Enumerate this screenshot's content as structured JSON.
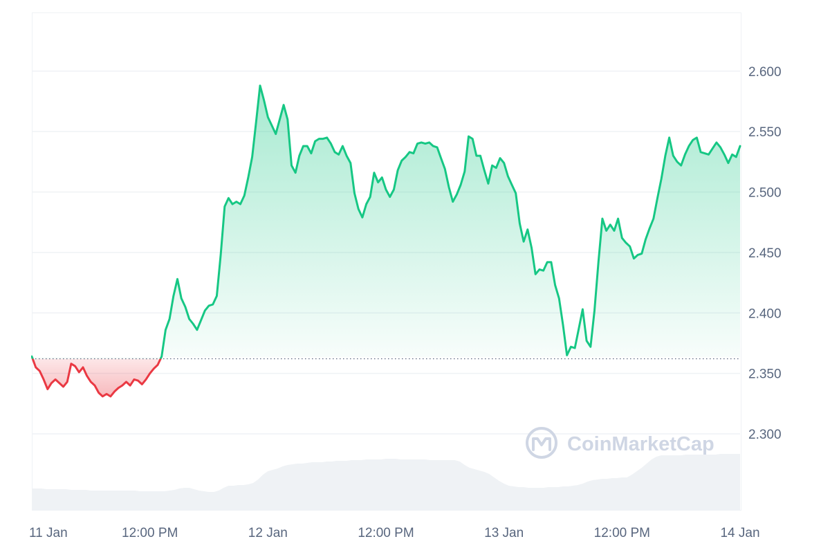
{
  "chart_data": {
    "type": "area",
    "baseline": 2.3635,
    "ylim": [
      2.2365,
      2.6485
    ],
    "y_ticks": [
      "2.300",
      "2.350",
      "2.400",
      "2.450",
      "2.500",
      "2.550",
      "2.600"
    ],
    "x_ticks": [
      "11 Jan",
      "12:00 PM",
      "12 Jan",
      "12:00 PM",
      "13 Jan",
      "12:00 PM",
      "14 Jan"
    ],
    "colors": {
      "up_line": "#16c784",
      "down_line": "#ea3943",
      "up_fill": "#16c784",
      "down_fill": "#ea3943",
      "grid": "#eff2f5",
      "volume": "#eff2f5",
      "baseline": "#58667e"
    },
    "series": [
      {
        "values": [
          [
            0.0,
            2.364
          ],
          [
            0.4,
            2.355
          ],
          [
            0.8,
            2.352
          ],
          [
            1.2,
            2.345
          ],
          [
            1.6,
            2.337
          ],
          [
            2.0,
            2.342
          ],
          [
            2.4,
            2.345
          ],
          [
            2.8,
            2.342
          ],
          [
            3.2,
            2.339
          ],
          [
            3.6,
            2.343
          ],
          [
            4.0,
            2.358
          ],
          [
            4.4,
            2.356
          ],
          [
            4.8,
            2.351
          ],
          [
            5.2,
            2.355
          ],
          [
            5.6,
            2.348
          ],
          [
            6.0,
            2.343
          ],
          [
            6.4,
            2.34
          ],
          [
            6.8,
            2.334
          ],
          [
            7.2,
            2.331
          ],
          [
            7.6,
            2.333
          ],
          [
            8.0,
            2.331
          ],
          [
            8.4,
            2.335
          ],
          [
            8.8,
            2.338
          ],
          [
            9.2,
            2.34
          ],
          [
            9.6,
            2.343
          ],
          [
            10.0,
            2.34
          ],
          [
            10.4,
            2.345
          ],
          [
            10.8,
            2.344
          ],
          [
            11.2,
            2.341
          ],
          [
            11.6,
            2.345
          ],
          [
            12.0,
            2.35
          ],
          [
            12.4,
            2.354
          ],
          [
            12.8,
            2.357
          ],
          [
            13.2,
            2.364
          ],
          [
            13.6,
            2.386
          ],
          [
            14.0,
            2.395
          ],
          [
            14.4,
            2.414
          ],
          [
            14.8,
            2.428
          ],
          [
            15.2,
            2.412
          ],
          [
            15.6,
            2.405
          ],
          [
            16.0,
            2.395
          ],
          [
            16.4,
            2.391
          ],
          [
            16.8,
            2.386
          ],
          [
            17.2,
            2.394
          ],
          [
            17.6,
            2.402
          ],
          [
            18.0,
            2.406
          ],
          [
            18.4,
            2.407
          ],
          [
            18.8,
            2.414
          ],
          [
            19.2,
            2.448
          ],
          [
            19.6,
            2.488
          ],
          [
            20.0,
            2.495
          ],
          [
            20.4,
            2.49
          ],
          [
            20.8,
            2.492
          ],
          [
            21.2,
            2.49
          ],
          [
            21.6,
            2.497
          ],
          [
            22.0,
            2.512
          ],
          [
            22.4,
            2.529
          ],
          [
            22.8,
            2.558
          ],
          [
            23.2,
            2.588
          ],
          [
            23.6,
            2.576
          ],
          [
            24.0,
            2.562
          ],
          [
            24.4,
            2.555
          ],
          [
            24.8,
            2.548
          ],
          [
            25.2,
            2.56
          ],
          [
            25.6,
            2.572
          ],
          [
            26.0,
            2.56
          ],
          [
            26.4,
            2.522
          ],
          [
            26.8,
            2.516
          ],
          [
            27.2,
            2.53
          ],
          [
            27.6,
            2.538
          ],
          [
            28.0,
            2.538
          ],
          [
            28.4,
            2.532
          ],
          [
            28.8,
            2.542
          ],
          [
            29.2,
            2.544
          ],
          [
            29.6,
            2.544
          ],
          [
            30.0,
            2.545
          ],
          [
            30.4,
            2.54
          ],
          [
            30.8,
            2.533
          ],
          [
            31.2,
            2.531
          ],
          [
            31.6,
            2.538
          ],
          [
            32.0,
            2.53
          ],
          [
            32.4,
            2.524
          ],
          [
            32.8,
            2.499
          ],
          [
            33.2,
            2.486
          ],
          [
            33.6,
            2.479
          ],
          [
            34.0,
            2.49
          ],
          [
            34.4,
            2.496
          ],
          [
            34.8,
            2.516
          ],
          [
            35.2,
            2.508
          ],
          [
            35.6,
            2.512
          ],
          [
            36.0,
            2.502
          ],
          [
            36.4,
            2.496
          ],
          [
            36.8,
            2.502
          ],
          [
            37.2,
            2.518
          ],
          [
            37.6,
            2.526
          ],
          [
            38.0,
            2.529
          ],
          [
            38.4,
            2.533
          ],
          [
            38.8,
            2.532
          ],
          [
            39.2,
            2.54
          ],
          [
            39.6,
            2.541
          ],
          [
            40.0,
            2.54
          ],
          [
            40.4,
            2.541
          ],
          [
            40.8,
            2.538
          ],
          [
            41.2,
            2.537
          ],
          [
            41.6,
            2.528
          ],
          [
            42.0,
            2.519
          ],
          [
            42.4,
            2.504
          ],
          [
            42.8,
            2.492
          ],
          [
            43.2,
            2.498
          ],
          [
            43.6,
            2.506
          ],
          [
            44.0,
            2.517
          ],
          [
            44.4,
            2.546
          ],
          [
            44.8,
            2.544
          ],
          [
            45.2,
            2.53
          ],
          [
            45.6,
            2.53
          ],
          [
            46.0,
            2.518
          ],
          [
            46.4,
            2.507
          ],
          [
            46.8,
            2.522
          ],
          [
            47.2,
            2.52
          ],
          [
            47.6,
            2.528
          ],
          [
            48.0,
            2.524
          ],
          [
            48.4,
            2.513
          ],
          [
            48.8,
            2.506
          ],
          [
            49.2,
            2.499
          ],
          [
            49.6,
            2.474
          ],
          [
            50.0,
            2.459
          ],
          [
            50.4,
            2.469
          ],
          [
            50.8,
            2.454
          ],
          [
            51.2,
            2.432
          ],
          [
            51.6,
            2.436
          ],
          [
            52.0,
            2.435
          ],
          [
            52.4,
            2.442
          ],
          [
            52.8,
            2.442
          ],
          [
            53.2,
            2.423
          ],
          [
            53.6,
            2.412
          ],
          [
            54.0,
            2.39
          ],
          [
            54.4,
            2.365
          ],
          [
            54.8,
            2.372
          ],
          [
            55.2,
            2.371
          ],
          [
            55.6,
            2.387
          ],
          [
            56.0,
            2.403
          ],
          [
            56.4,
            2.377
          ],
          [
            56.8,
            2.372
          ],
          [
            57.2,
            2.402
          ],
          [
            57.6,
            2.442
          ],
          [
            58.0,
            2.478
          ],
          [
            58.4,
            2.468
          ],
          [
            58.8,
            2.473
          ],
          [
            59.2,
            2.468
          ],
          [
            59.6,
            2.478
          ],
          [
            60.0,
            2.462
          ],
          [
            60.4,
            2.458
          ],
          [
            60.8,
            2.455
          ],
          [
            61.2,
            2.445
          ],
          [
            61.6,
            2.448
          ],
          [
            62.0,
            2.449
          ],
          [
            62.4,
            2.461
          ],
          [
            62.8,
            2.47
          ],
          [
            63.2,
            2.478
          ],
          [
            63.6,
            2.495
          ],
          [
            64.0,
            2.511
          ],
          [
            64.4,
            2.53
          ],
          [
            64.8,
            2.545
          ],
          [
            65.2,
            2.53
          ],
          [
            65.6,
            2.525
          ],
          [
            66.0,
            2.522
          ],
          [
            66.4,
            2.531
          ],
          [
            66.8,
            2.538
          ],
          [
            67.2,
            2.543
          ],
          [
            67.6,
            2.545
          ],
          [
            68.0,
            2.533
          ],
          [
            68.4,
            2.532
          ],
          [
            68.8,
            2.531
          ],
          [
            69.2,
            2.536
          ],
          [
            69.6,
            2.541
          ],
          [
            70.0,
            2.537
          ],
          [
            70.4,
            2.531
          ],
          [
            70.8,
            2.524
          ],
          [
            71.2,
            2.531
          ],
          [
            71.6,
            2.529
          ],
          [
            72.0,
            2.538
          ]
        ]
      }
    ],
    "volume": [
      0.32,
      0.32,
      0.32,
      0.31,
      0.31,
      0.31,
      0.31,
      0.31,
      0.3,
      0.3,
      0.3,
      0.3,
      0.29,
      0.29,
      0.29,
      0.29,
      0.29,
      0.29,
      0.29,
      0.29,
      0.29,
      0.29,
      0.28,
      0.28,
      0.28,
      0.28,
      0.28,
      0.28,
      0.29,
      0.3,
      0.32,
      0.33,
      0.33,
      0.31,
      0.29,
      0.28,
      0.27,
      0.27,
      0.29,
      0.33,
      0.36,
      0.36,
      0.37,
      0.37,
      0.38,
      0.4,
      0.45,
      0.52,
      0.57,
      0.59,
      0.61,
      0.64,
      0.66,
      0.67,
      0.68,
      0.68,
      0.69,
      0.7,
      0.7,
      0.7,
      0.71,
      0.71,
      0.72,
      0.72,
      0.72,
      0.73,
      0.73,
      0.73,
      0.74,
      0.74,
      0.74,
      0.74,
      0.75,
      0.75,
      0.75,
      0.74,
      0.74,
      0.74,
      0.74,
      0.74,
      0.74,
      0.73,
      0.73,
      0.73,
      0.73,
      0.73,
      0.73,
      0.71,
      0.66,
      0.62,
      0.6,
      0.58,
      0.56,
      0.53,
      0.48,
      0.43,
      0.39,
      0.36,
      0.35,
      0.34,
      0.34,
      0.33,
      0.33,
      0.33,
      0.33,
      0.34,
      0.34,
      0.34,
      0.35,
      0.35,
      0.36,
      0.37,
      0.39,
      0.42,
      0.44,
      0.45,
      0.46,
      0.46,
      0.47,
      0.47,
      0.48,
      0.48,
      0.52,
      0.57,
      0.62,
      0.68,
      0.74,
      0.78,
      0.8,
      0.8,
      0.8,
      0.8,
      0.8,
      0.81,
      0.81,
      0.81,
      0.81,
      0.81,
      0.81,
      0.81,
      0.82,
      0.82,
      0.82,
      0.82,
      0.82
    ]
  },
  "watermark": {
    "text": "CoinMarketCap"
  }
}
